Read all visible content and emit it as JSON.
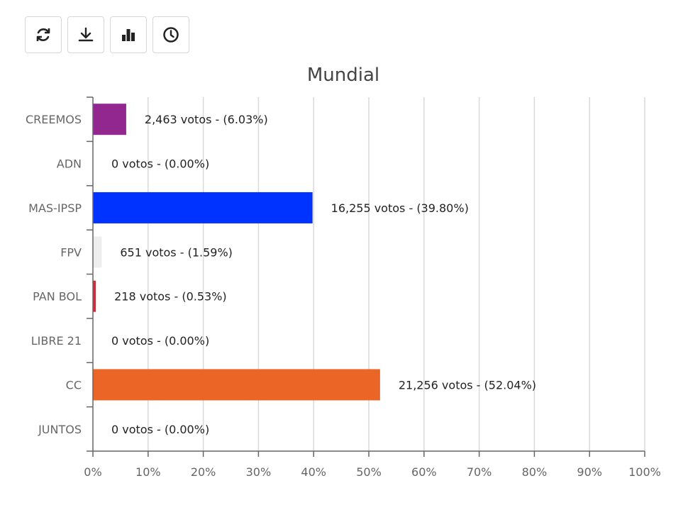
{
  "toolbar": {
    "buttons": [
      {
        "icon": "refresh-icon"
      },
      {
        "icon": "download-icon"
      },
      {
        "icon": "bar-chart-icon"
      },
      {
        "icon": "clock-icon"
      }
    ]
  },
  "chart_data": {
    "type": "bar",
    "orientation": "horizontal",
    "title": "Mundial",
    "xlabel": "",
    "ylabel": "",
    "categories": [
      "CREEMOS",
      "ADN",
      "MAS-IPSP",
      "FPV",
      "PAN BOL",
      "LIBRE 21",
      "CC",
      "JUNTOS"
    ],
    "values": [
      6.03,
      0.0,
      39.8,
      1.59,
      0.53,
      0.0,
      52.04,
      0.0
    ],
    "data_labels": [
      "2,463 votos - (6.03%)",
      "0 votos - (0.00%)",
      "16,255 votos - (39.80%)",
      "651 votos - (1.59%)",
      "218 votos - (0.53%)",
      "0 votos - (0.00%)",
      "21,256 votos - (52.04%)",
      "0 votos - (0.00%)"
    ],
    "colors": [
      "#92278f",
      "#ffffff",
      "#0033ff",
      "#eeeeee",
      "#d62839",
      "#ffffff",
      "#ea6526",
      "#ffffff"
    ],
    "xlim": [
      0,
      100
    ],
    "xticks": [
      "0%",
      "10%",
      "20%",
      "30%",
      "40%",
      "50%",
      "60%",
      "70%",
      "80%",
      "90%",
      "100%"
    ],
    "grid": true,
    "legend": "none"
  }
}
